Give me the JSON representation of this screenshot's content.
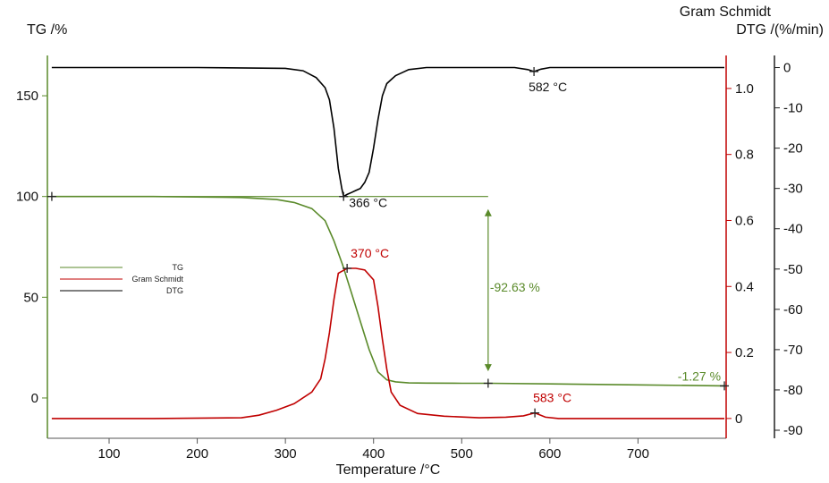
{
  "chart_data": {
    "type": "line",
    "xlabel": "Temperature /°C",
    "xlim": [
      30,
      800
    ],
    "x_ticks": [
      100,
      200,
      300,
      400,
      500,
      600,
      700
    ],
    "tg_axis": {
      "label": "TG /%",
      "ylim": [
        -20,
        170
      ],
      "ticks": [
        0,
        50,
        100,
        150
      ],
      "color": "#5a8a2a"
    },
    "gs_axis": {
      "label": "Gram Schmidt",
      "ylim": [
        -0.06,
        1.1
      ],
      "ticks": [
        0,
        0.2,
        0.4,
        0.6,
        0.8,
        1.0
      ],
      "tick_labels": [
        "0",
        "0.2",
        "0.4",
        "0.6",
        "0.8",
        "1.0"
      ],
      "color": "#c00000"
    },
    "dtg_axis": {
      "label": "DTG /(%/min)",
      "ylim": [
        -92,
        3
      ],
      "ticks": [
        0,
        -10,
        -20,
        -30,
        -40,
        -50,
        -60,
        -70,
        -80,
        -90
      ],
      "color": "#000000"
    },
    "series": [
      {
        "name": "TG",
        "axis": "tg",
        "color": "#5a8a2a",
        "x": [
          35,
          150,
          250,
          290,
          310,
          330,
          345,
          355,
          365,
          375,
          385,
          395,
          405,
          415,
          425,
          440,
          460,
          500,
          530,
          600,
          700,
          798
        ],
        "values": [
          100,
          100,
          99.5,
          98.5,
          97,
          94,
          88,
          78,
          66,
          52,
          38,
          24,
          13,
          9,
          8,
          7.5,
          7.4,
          7.3,
          7.3,
          7,
          6.5,
          6
        ]
      },
      {
        "name": "Gram Schmidt",
        "axis": "gs",
        "color": "#c00000",
        "x": [
          35,
          150,
          250,
          270,
          290,
          310,
          330,
          340,
          345,
          350,
          355,
          360,
          370,
          380,
          390,
          400,
          405,
          410,
          415,
          420,
          430,
          450,
          480,
          520,
          550,
          570,
          583,
          595,
          610,
          700,
          798
        ],
        "values": [
          0,
          0,
          0.002,
          0.01,
          0.025,
          0.045,
          0.08,
          0.12,
          0.18,
          0.26,
          0.36,
          0.44,
          0.455,
          0.455,
          0.45,
          0.42,
          0.34,
          0.24,
          0.15,
          0.08,
          0.04,
          0.015,
          0.007,
          0.002,
          0.004,
          0.008,
          0.017,
          0.004,
          0,
          0,
          0
        ]
      },
      {
        "name": "DTG",
        "axis": "dtg",
        "color": "#000000",
        "x": [
          35,
          200,
          300,
          320,
          335,
          345,
          350,
          355,
          360,
          364,
          366,
          370,
          375,
          380,
          385,
          390,
          395,
          400,
          405,
          410,
          415,
          420,
          425,
          430,
          440,
          460,
          500,
          560,
          575,
          582,
          590,
          600,
          700,
          798
        ],
        "values": [
          0,
          0,
          -0.2,
          -0.8,
          -2.5,
          -5,
          -8,
          -15,
          -25,
          -30,
          -32,
          -31.5,
          -31,
          -30.5,
          -30,
          -28.5,
          -26,
          -20,
          -13,
          -7,
          -4,
          -3,
          -2,
          -1.5,
          -0.5,
          0,
          0,
          0,
          -0.5,
          -1,
          -0.4,
          0,
          0,
          0
        ]
      }
    ],
    "annotations": {
      "dtg_peak_1": "366 °C",
      "dtg_peak_2": "582 °C",
      "gs_peak_1": "370 °C",
      "gs_peak_2": "583 °C",
      "mass_loss_1": "-92.63 %",
      "mass_loss_2": "-1.27 %"
    },
    "legend": {
      "position": "left",
      "entries": [
        {
          "label": "TG",
          "color": "#5a8a2a"
        },
        {
          "label": "Gram Schmidt",
          "color": "#c00000"
        },
        {
          "label": "DTG",
          "color": "#000000"
        }
      ]
    }
  }
}
